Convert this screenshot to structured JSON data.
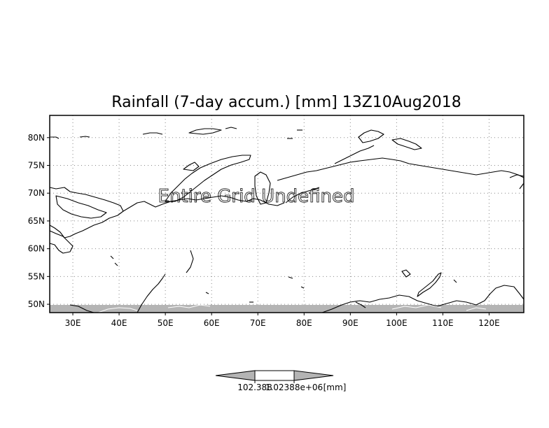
{
  "title": "Rainfall (7-day accum.) [mm] 13Z10Aug2018",
  "overlay_text": "Entire Grid Undefined",
  "map": {
    "lon_range": [
      25,
      127.5
    ],
    "lat_range": [
      48.5,
      84
    ],
    "lon_ticks": [
      "30E",
      "40E",
      "50E",
      "60E",
      "70E",
      "80E",
      "90E",
      "100E",
      "110E",
      "120E"
    ],
    "lat_ticks": [
      "80N",
      "75N",
      "70N",
      "65N",
      "60N",
      "55N",
      "50N"
    ],
    "grid": true,
    "masked_band_color": "#b4b4b4"
  },
  "colorbar": {
    "left_label": "102.388",
    "center_label": "1.02388e+06",
    "unit_label": "[mm]",
    "fill_colors": [
      "#b4b4b4",
      "#ffffff",
      "#b4b4b4"
    ]
  }
}
